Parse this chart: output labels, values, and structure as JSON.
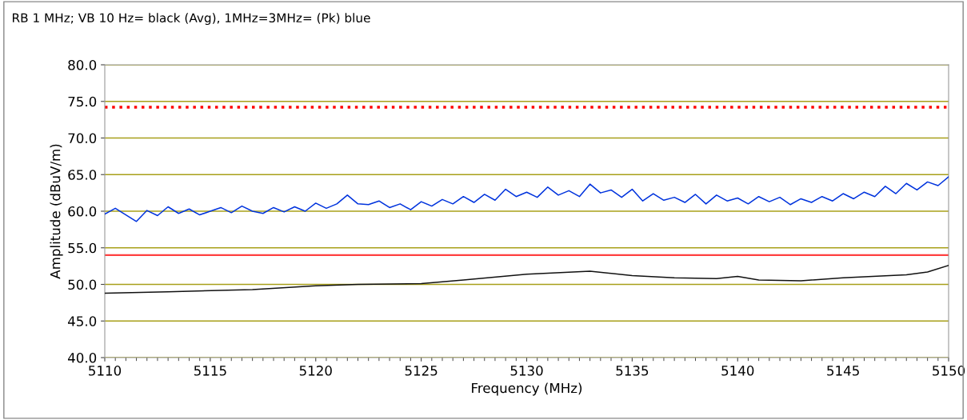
{
  "chart_data": {
    "type": "line",
    "title": "RB 1 MHz; VB 10 Hz= black (Avg), 1MHz=3MHz= (Pk) blue",
    "xlabel": "Frequency (MHz)",
    "ylabel": "Amplitude (dBuV/m)",
    "xlim": [
      5110,
      5150
    ],
    "xticks": [
      5110,
      5115,
      5120,
      5125,
      5130,
      5135,
      5140,
      5145,
      5150
    ],
    "ylim": [
      40,
      80
    ],
    "yticks": [
      {
        "value": 40,
        "label": "40.0"
      },
      {
        "value": 45,
        "label": "45.0"
      },
      {
        "value": 50,
        "label": "50.0"
      },
      {
        "value": 55,
        "label": "55.0"
      },
      {
        "value": 60,
        "label": "60.0"
      },
      {
        "value": 65,
        "label": "65.0"
      },
      {
        "value": 70,
        "label": "70.0"
      },
      {
        "value": 75,
        "label": "75.0"
      },
      {
        "value": 80,
        "label": "80.0"
      }
    ],
    "grid": "y",
    "legend": false,
    "marker": "none",
    "line_style": "solid",
    "ref_lines": [
      {
        "axis": "y",
        "value": 74.2,
        "color": "#ff0000",
        "line_style": "dotted"
      },
      {
        "axis": "y",
        "value": 54.0,
        "color": "#ff4040",
        "line_style": "solid"
      }
    ],
    "series": [
      {
        "color": "#0033dd",
        "x": [
          5110,
          5110.5,
          5111,
          5111.5,
          5112,
          5112.5,
          5113,
          5113.5,
          5114,
          5114.5,
          5115,
          5115.5,
          5116,
          5116.5,
          5117,
          5117.5,
          5118,
          5118.5,
          5119,
          5119.5,
          5120,
          5120.5,
          5121,
          5121.5,
          5122,
          5122.5,
          5123,
          5123.5,
          5124,
          5124.5,
          5125,
          5125.5,
          5126,
          5126.5,
          5127,
          5127.5,
          5128,
          5128.5,
          5129,
          5129.5,
          5130,
          5130.5,
          5131,
          5131.5,
          5132,
          5132.5,
          5133,
          5133.5,
          5134,
          5134.5,
          5135,
          5135.5,
          5136,
          5136.5,
          5137,
          5137.5,
          5138,
          5138.5,
          5139,
          5139.5,
          5140,
          5140.5,
          5141,
          5141.5,
          5142,
          5142.5,
          5143,
          5143.5,
          5144,
          5144.5,
          5145,
          5145.5,
          5146,
          5146.5,
          5147,
          5147.5,
          5148,
          5148.5,
          5149,
          5149.5,
          5150
        ],
        "values": [
          59.6,
          60.4,
          59.5,
          58.6,
          60.1,
          59.4,
          60.6,
          59.7,
          60.3,
          59.5,
          60.0,
          60.5,
          59.8,
          60.7,
          60.0,
          59.7,
          60.5,
          59.9,
          60.6,
          60.0,
          61.1,
          60.4,
          61.0,
          62.2,
          61.0,
          60.9,
          61.4,
          60.5,
          61.0,
          60.2,
          61.3,
          60.7,
          61.6,
          61.0,
          62.0,
          61.2,
          62.3,
          61.5,
          63.0,
          62.0,
          62.6,
          61.9,
          63.3,
          62.2,
          62.8,
          62.0,
          63.7,
          62.5,
          62.9,
          61.9,
          63.0,
          61.4,
          62.4,
          61.5,
          61.9,
          61.2,
          62.3,
          61.0,
          62.2,
          61.4,
          61.8,
          61.0,
          62.0,
          61.3,
          61.9,
          60.9,
          61.7,
          61.2,
          62.0,
          61.4,
          62.4,
          61.7,
          62.6,
          62.0,
          63.4,
          62.4,
          63.8,
          62.9,
          64.0,
          63.5,
          64.7
        ]
      },
      {
        "color": "#111111",
        "x": [
          5110,
          5113,
          5117,
          5120,
          5122,
          5125,
          5127,
          5130,
          5133,
          5135,
          5137,
          5139,
          5140,
          5141,
          5143,
          5145,
          5148,
          5149,
          5150
        ],
        "values": [
          48.8,
          49.0,
          49.3,
          49.8,
          50.0,
          50.1,
          50.6,
          51.4,
          51.8,
          51.2,
          50.9,
          50.8,
          51.1,
          50.6,
          50.5,
          50.9,
          51.3,
          51.7,
          52.6
        ]
      }
    ]
  }
}
